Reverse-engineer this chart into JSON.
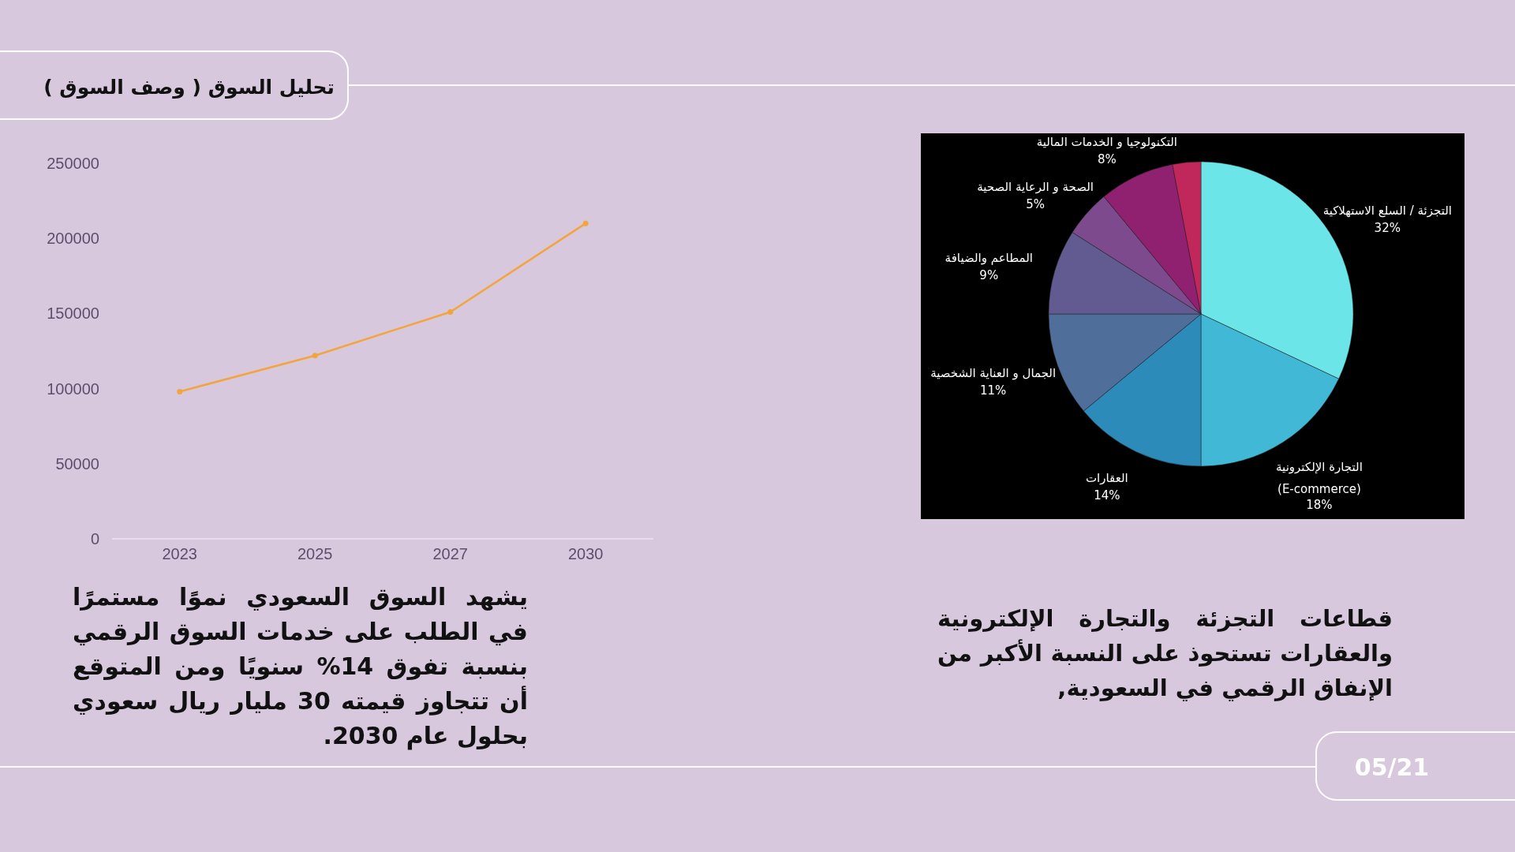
{
  "chart_data": [
    {
      "type": "line",
      "title": "تحليل السوق ( وصف السوق )",
      "categories": [
        "2023",
        "2025",
        "2027",
        "2030"
      ],
      "series": [
        {
          "color": "#f4a43c",
          "values": [
            98000,
            122000,
            151000,
            210000
          ]
        }
      ],
      "ylim": [
        0,
        250000
      ],
      "yticks": [
        0,
        50000,
        100000,
        150000,
        200000,
        250000
      ],
      "grid": false,
      "marker": "circle",
      "annotations": [
        "يشهد السوق السعودي نموًا مستمرًا في الطلب على خدمات السوق الرقمي بنسبة تفوق 14% سنويًا ومن المتوقع أن تتجاوز قيمته 30 مليار ريال سعودي بحلول عام 2030."
      ]
    },
    {
      "type": "pie",
      "categories": [
        "التجزئة / السلع الاستهلاكية",
        "التجارة الإلكترونية\n(E-commerce)",
        "العقارات",
        "الجمال و العناية الشخصية",
        "المطاعم والضيافة",
        "الصحة و الرعاية الصحية",
        "التكنولوجيا و الخدمات المالية",
        null
      ],
      "values": [
        32,
        18,
        14,
        11,
        9,
        5,
        8,
        3
      ],
      "value_labels": [
        "32%",
        "18%",
        "14%",
        "11%",
        "9%",
        "5%",
        "8%",
        null
      ],
      "colors": [
        "#6ce5e8",
        "#41b8d5",
        "#2d8bba",
        "#506e9a",
        "#625b92",
        "#7e4a8e",
        "#8f2170",
        "#c0275b"
      ],
      "annotations": [
        "قطاعات التجزئة والتجارة الإلكترونية والعقارات تستحوذ على النسبة الأكبر من الإنفاق الرقمي في السعودية,",
        "05/21"
      ]
    }
  ]
}
